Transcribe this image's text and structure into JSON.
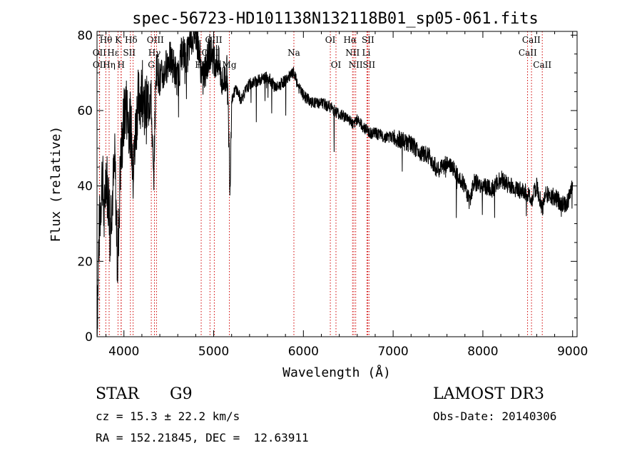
{
  "chart_data": {
    "type": "line",
    "title": "spec-56723-HD101138N132118B01_sp05-061.fits",
    "xlabel": "Wavelength (Å)",
    "ylabel": "Flux (relative)",
    "xlim": [
      3700,
      9050
    ],
    "ylim": [
      0,
      81
    ],
    "xticks": [
      4000,
      5000,
      6000,
      7000,
      8000,
      9000
    ],
    "yticks": [
      0,
      20,
      40,
      60,
      80
    ],
    "grid": false,
    "series": [
      {
        "name": "spectrum",
        "x": [
          3700,
          3720,
          3740,
          3760,
          3780,
          3800,
          3820,
          3850,
          3880,
          3900,
          3930,
          3960,
          3990,
          4020,
          4050,
          4080,
          4100,
          4150,
          4200,
          4250,
          4300,
          4330,
          4360,
          4400,
          4450,
          4500,
          4550,
          4600,
          4650,
          4700,
          4750,
          4800,
          4850,
          4861,
          4880,
          4920,
          4960,
          5000,
          5050,
          5100,
          5150,
          5183,
          5200,
          5250,
          5300,
          5400,
          5500,
          5600,
          5700,
          5800,
          5890,
          5950,
          6000,
          6100,
          6200,
          6300,
          6400,
          6500,
          6563,
          6600,
          6650,
          6700,
          6750,
          6800,
          6900,
          7000,
          7100,
          7200,
          7300,
          7400,
          7500,
          7600,
          7700,
          7800,
          7850,
          7900,
          8000,
          8100,
          8200,
          8300,
          8400,
          8500,
          8542,
          8600,
          8662,
          8700,
          8800,
          8900,
          8950,
          9000
        ],
        "y": [
          2,
          25,
          35,
          44,
          30,
          45,
          38,
          32,
          40,
          46,
          18,
          45,
          55,
          62,
          58,
          55,
          42,
          62,
          65,
          60,
          66,
          40,
          72,
          68,
          70,
          74,
          72,
          68,
          76,
          74,
          79,
          81,
          74,
          70,
          68,
          72,
          76,
          74,
          73,
          67,
          70,
          40,
          63,
          66,
          63,
          67,
          68,
          69,
          66,
          68,
          70,
          66,
          64,
          62,
          62,
          61,
          59,
          58,
          56,
          58,
          56,
          55,
          54,
          54,
          53,
          53,
          52,
          51,
          49,
          48,
          44,
          46,
          44,
          40,
          36,
          41,
          40,
          39,
          42,
          40,
          39,
          38,
          36,
          40,
          34,
          38,
          37,
          35,
          36,
          40
        ]
      }
    ],
    "lines": [
      {
        "name": "Hθ",
        "x": 3798
      },
      {
        "name": "OII",
        "x": 3727
      },
      {
        "name": "OII",
        "x": 3729
      },
      {
        "name": "Hε",
        "x": 3970
      },
      {
        "name": "Hη",
        "x": 3835
      },
      {
        "name": "K",
        "x": 3934
      },
      {
        "name": "H",
        "x": 3968
      },
      {
        "name": "Hδ",
        "x": 4102
      },
      {
        "name": "SII",
        "x": 4072
      },
      {
        "name": "OIII",
        "x": 4363
      },
      {
        "name": "Hγ",
        "x": 4340
      },
      {
        "name": "G",
        "x": 4305
      },
      {
        "name": "Hβ",
        "x": 4861
      },
      {
        "name": "OIII",
        "x": 4959
      },
      {
        "name": "OIII",
        "x": 5007
      },
      {
        "name": "Mg",
        "x": 5175
      },
      {
        "name": "Na",
        "x": 5894
      },
      {
        "name": "OI",
        "x": 6300
      },
      {
        "name": "OI",
        "x": 6363
      },
      {
        "name": "Hα",
        "x": 6563
      },
      {
        "name": "NII",
        "x": 6548
      },
      {
        "name": "NII",
        "x": 6583
      },
      {
        "name": "SII",
        "x": 6717
      },
      {
        "name": "SII",
        "x": 6731
      },
      {
        "name": "Li",
        "x": 6708
      },
      {
        "name": "CaII",
        "x": 8498
      },
      {
        "name": "CaII",
        "x": 8542
      },
      {
        "name": "CaII",
        "x": 8662
      }
    ],
    "line_labels": [
      {
        "text": "Hθ",
        "x": 3800,
        "row": 1
      },
      {
        "text": "K",
        "x": 3935,
        "row": 1
      },
      {
        "text": "Hδ",
        "x": 4080,
        "row": 1
      },
      {
        "text": "OIII",
        "x": 4350,
        "row": 1
      },
      {
        "text": "OIII",
        "x": 5000,
        "row": 1
      },
      {
        "text": "OI",
        "x": 6300,
        "row": 1
      },
      {
        "text": "Hα",
        "x": 6520,
        "row": 1
      },
      {
        "text": "SII",
        "x": 6720,
        "row": 1
      },
      {
        "text": "CaII",
        "x": 8540,
        "row": 1
      },
      {
        "text": "OII",
        "x": 3727,
        "row": 2
      },
      {
        "text": "Hε",
        "x": 3880,
        "row": 2
      },
      {
        "text": "SII",
        "x": 4060,
        "row": 2
      },
      {
        "text": "Hγ",
        "x": 4340,
        "row": 2
      },
      {
        "text": "OIII",
        "x": 4960,
        "row": 2
      },
      {
        "text": "Na",
        "x": 5894,
        "row": 2
      },
      {
        "text": "NII",
        "x": 6548,
        "row": 2
      },
      {
        "text": "Li",
        "x": 6700,
        "row": 2
      },
      {
        "text": "CaII",
        "x": 8500,
        "row": 2
      },
      {
        "text": "OII",
        "x": 3728,
        "row": 3
      },
      {
        "text": "Hη",
        "x": 3835,
        "row": 3
      },
      {
        "text": "H",
        "x": 3968,
        "row": 3
      },
      {
        "text": "G",
        "x": 4305,
        "row": 3
      },
      {
        "text": "Hβ",
        "x": 4861,
        "row": 3
      },
      {
        "text": "Mg",
        "x": 5175,
        "row": 3
      },
      {
        "text": "OI",
        "x": 6363,
        "row": 3
      },
      {
        "text": "NII",
        "x": 6583,
        "row": 3
      },
      {
        "text": "SII",
        "x": 6731,
        "row": 3
      },
      {
        "text": "CaII",
        "x": 8662,
        "row": 3
      }
    ]
  },
  "info": {
    "object_type": "STAR",
    "subclass": "G9",
    "survey": "LAMOST DR3",
    "cz": "cz = 15.3 ± 22.2 km/s",
    "obs_date": "Obs-Date: 20140306",
    "coords": "RA = 152.21845, DEC =  12.63911"
  }
}
